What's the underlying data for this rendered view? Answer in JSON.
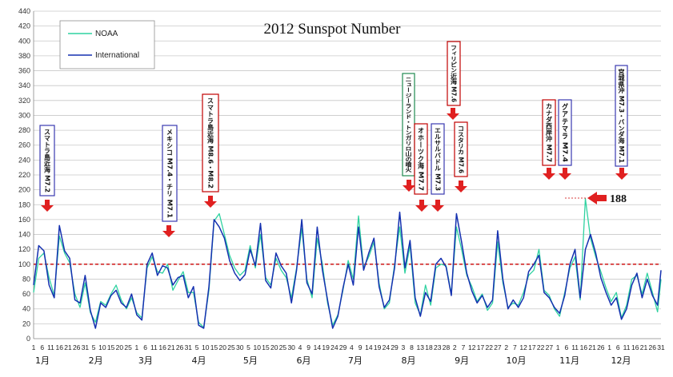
{
  "chart_data": {
    "type": "line",
    "title": "2012 Sunspot Number",
    "ylim": [
      0,
      440
    ],
    "yticks": [
      0,
      20,
      40,
      60,
      80,
      100,
      120,
      140,
      160,
      180,
      200,
      220,
      240,
      260,
      280,
      300,
      320,
      340,
      360,
      380,
      400,
      420,
      440
    ],
    "xlim": [
      1,
      366
    ],
    "grid": true,
    "legend_position": "top-left",
    "reference_line": 100,
    "months": [
      {
        "label": "1月",
        "start": 1,
        "ticks": [
          "1",
          "6",
          "11",
          "16",
          "21",
          "26",
          "31"
        ]
      },
      {
        "label": "2月",
        "start": 32,
        "ticks": [
          "5",
          "10",
          "15",
          "20",
          "25"
        ]
      },
      {
        "label": "3月",
        "start": 61,
        "ticks": [
          "1",
          "6",
          "11",
          "16",
          "21",
          "26",
          "31"
        ]
      },
      {
        "label": "4月",
        "start": 92,
        "ticks": [
          "5",
          "10",
          "15",
          "20",
          "25",
          "30"
        ]
      },
      {
        "label": "5月",
        "start": 122,
        "ticks": [
          "5",
          "10",
          "15",
          "20",
          "25",
          "30"
        ]
      },
      {
        "label": "6月",
        "start": 153,
        "ticks": [
          "4",
          "9",
          "14",
          "19",
          "24",
          "29"
        ]
      },
      {
        "label": "7月",
        "start": 183,
        "ticks": [
          "4",
          "9",
          "14",
          "19",
          "24",
          "29"
        ]
      },
      {
        "label": "8月",
        "start": 214,
        "ticks": [
          "3",
          "8",
          "13",
          "18",
          "23",
          "28"
        ]
      },
      {
        "label": "9月",
        "start": 245,
        "ticks": [
          "2",
          "7",
          "12",
          "17",
          "22",
          "27"
        ]
      },
      {
        "label": "10月",
        "start": 275,
        "ticks": [
          "2",
          "7",
          "12",
          "17",
          "22",
          "27"
        ]
      },
      {
        "label": "11月",
        "start": 306,
        "ticks": [
          "1",
          "6",
          "11",
          "16",
          "21",
          "26"
        ]
      },
      {
        "label": "12月",
        "start": 336,
        "ticks": [
          "1",
          "6",
          "11",
          "16",
          "21",
          "26",
          "31"
        ]
      }
    ],
    "series": [
      {
        "name": "NOAA",
        "color": "#2ed2a0",
        "x": [
          1,
          4,
          7,
          10,
          13,
          16,
          19,
          22,
          25,
          28,
          31,
          34,
          37,
          40,
          43,
          46,
          49,
          52,
          55,
          58,
          61,
          64,
          67,
          70,
          73,
          76,
          79,
          82,
          85,
          88,
          91,
          94,
          97,
          100,
          103,
          106,
          109,
          112,
          115,
          118,
          121,
          124,
          127,
          130,
          133,
          136,
          139,
          142,
          145,
          148,
          151,
          154,
          157,
          160,
          163,
          166,
          169,
          172,
          175,
          178,
          181,
          184,
          187,
          190,
          193,
          196,
          199,
          202,
          205,
          208,
          211,
          214,
          217,
          220,
          223,
          226,
          229,
          232,
          235,
          238,
          241,
          244,
          247,
          250,
          253,
          256,
          259,
          262,
          265,
          268,
          271,
          274,
          277,
          280,
          283,
          286,
          289,
          292,
          295,
          298,
          301,
          304,
          307,
          310,
          313,
          316,
          319,
          322,
          325,
          328,
          331,
          334,
          337,
          340,
          343,
          346,
          349,
          352,
          355,
          358,
          361,
          364,
          366
        ],
        "values": [
          62,
          108,
          115,
          82,
          58,
          138,
          115,
          102,
          60,
          42,
          75,
          35,
          22,
          50,
          45,
          60,
          72,
          52,
          40,
          55,
          35,
          28,
          95,
          110,
          90,
          88,
          100,
          65,
          78,
          90,
          62,
          62,
          22,
          15,
          65,
          158,
          168,
          140,
          112,
          95,
          85,
          92,
          125,
          95,
          140,
          82,
          72,
          108,
          92,
          82,
          55,
          95,
          148,
          80,
          55,
          135,
          100,
          48,
          18,
          32,
          65,
          105,
          80,
          165,
          95,
          110,
          130,
          75,
          40,
          48,
          100,
          150,
          88,
          125,
          48,
          32,
          72,
          45,
          95,
          100,
          98,
          60,
          150,
          120,
          85,
          70,
          50,
          60,
          38,
          48,
          130,
          75,
          42,
          48,
          45,
          62,
          85,
          92,
          120,
          65,
          58,
          40,
          30,
          62,
          95,
          110,
          52,
          188,
          135,
          110,
          90,
          68,
          50,
          62,
          28,
          45,
          80,
          85,
          60,
          88,
          62,
          36,
          80
        ]
      },
      {
        "name": "International",
        "color": "#1531b0",
        "x": [
          1,
          4,
          7,
          10,
          13,
          16,
          19,
          22,
          25,
          28,
          31,
          34,
          37,
          40,
          43,
          46,
          49,
          52,
          55,
          58,
          61,
          64,
          67,
          70,
          73,
          76,
          79,
          82,
          85,
          88,
          91,
          94,
          97,
          100,
          103,
          106,
          109,
          112,
          115,
          118,
          121,
          124,
          127,
          130,
          133,
          136,
          139,
          142,
          145,
          148,
          151,
          154,
          157,
          160,
          163,
          166,
          169,
          172,
          175,
          178,
          181,
          184,
          187,
          190,
          193,
          196,
          199,
          202,
          205,
          208,
          211,
          214,
          217,
          220,
          223,
          226,
          229,
          232,
          235,
          238,
          241,
          244,
          247,
          250,
          253,
          256,
          259,
          262,
          265,
          268,
          271,
          274,
          277,
          280,
          283,
          286,
          289,
          292,
          295,
          298,
          301,
          304,
          307,
          310,
          313,
          316,
          319,
          322,
          325,
          328,
          331,
          334,
          337,
          340,
          343,
          346,
          349,
          352,
          355,
          358,
          361,
          364,
          366
        ],
        "values": [
          72,
          125,
          118,
          72,
          55,
          152,
          118,
          108,
          52,
          48,
          85,
          38,
          14,
          48,
          42,
          58,
          65,
          48,
          42,
          60,
          32,
          25,
          100,
          115,
          85,
          98,
          95,
          72,
          82,
          85,
          55,
          70,
          18,
          14,
          70,
          160,
          150,
          135,
          105,
          88,
          78,
          86,
          120,
          98,
          155,
          78,
          68,
          115,
          98,
          88,
          48,
          92,
          160,
          75,
          60,
          150,
          92,
          52,
          14,
          30,
          68,
          100,
          72,
          150,
          92,
          115,
          135,
          70,
          42,
          52,
          95,
          170,
          95,
          132,
          55,
          30,
          62,
          50,
          100,
          108,
          96,
          58,
          168,
          130,
          88,
          64,
          48,
          58,
          42,
          52,
          145,
          80,
          40,
          52,
          42,
          55,
          90,
          100,
          112,
          62,
          55,
          42,
          34,
          58,
          100,
          120,
          55,
          120,
          140,
          115,
          82,
          62,
          45,
          55,
          26,
          40,
          72,
          88,
          55,
          80,
          58,
          45,
          92
        ]
      }
    ],
    "annotations": [
      {
        "text": "スマトラ島近海 M7.2",
        "border": "#3a3ab0",
        "day": 6
      },
      {
        "text": "メキシコ M7.4・チリ M7.1",
        "border": "#3a3ab0",
        "day": 77
      },
      {
        "text": "スマトラ島近海 M8.6・M8.2",
        "border": "#c00000",
        "day": 102
      },
      {
        "text": "ニュージーランド・トンガリロ山の噴火",
        "border": "#208a50",
        "day": 219
      },
      {
        "text": "オホーツク海 M7.7",
        "border": "#c00000",
        "day": 225
      },
      {
        "text": "エルサルバドル M7.3",
        "border": "#3a3ab0",
        "day": 231
      },
      {
        "text": "フィリピン近海 M7.6",
        "border": "#c00000",
        "day": 244
      },
      {
        "text": "コスタリカ M7.6",
        "border": "#c00000",
        "day": 249
      },
      {
        "text": "カナダ西岸沖 M7.7",
        "border": "#c00000",
        "day": 302
      },
      {
        "text": "グアテマラ M7.4",
        "border": "#3a3ab0",
        "day": 312
      },
      {
        "text": "宮城県沖 M7.3・バンダ海 M7.1",
        "border": "#3a3ab0",
        "day": 342
      }
    ],
    "peak_label": "188"
  }
}
